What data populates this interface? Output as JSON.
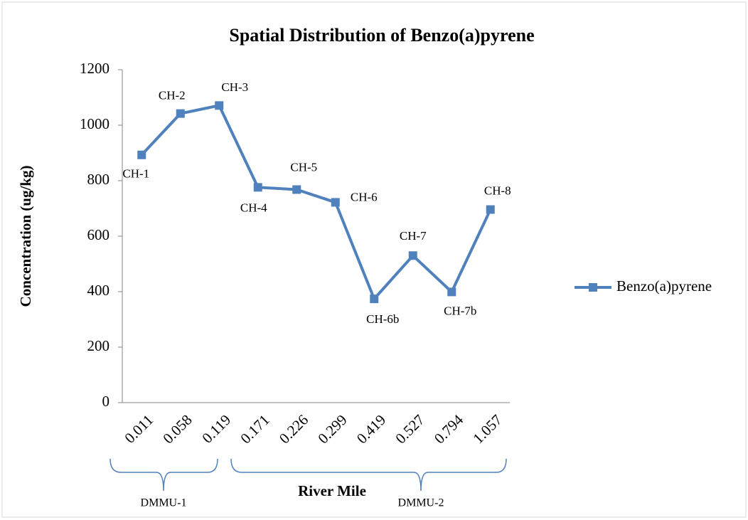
{
  "chart_data": {
    "type": "line",
    "title": "Spatial Distribution of Benzo(a)pyrene",
    "x_label": "River Mile",
    "y_label": "Concentration (ug/kg)",
    "categories": [
      "0.011",
      "0.058",
      "0.119",
      "0.171",
      "0.226",
      "0.299",
      "0.419",
      "0.527",
      "0.794",
      "1.057"
    ],
    "series": [
      {
        "name": "Benzo(a)pyrene",
        "color": "#4f81bd",
        "values": [
          893,
          1042,
          1071,
          776,
          768,
          722,
          374,
          530,
          399,
          696
        ],
        "point_labels": [
          "CH-1",
          "CH-2",
          "CH-3",
          "CH-4",
          "CH-5",
          "CH-6",
          "CH-6b",
          "CH-7",
          "CH-7b",
          "CH-8"
        ]
      }
    ],
    "ylim": [
      0,
      1200
    ],
    "yticks": [
      0,
      200,
      400,
      600,
      800,
      1000,
      1200
    ],
    "grid": false,
    "legend": "right",
    "groups": [
      "DMMU-1",
      "DMMU-2"
    ]
  }
}
